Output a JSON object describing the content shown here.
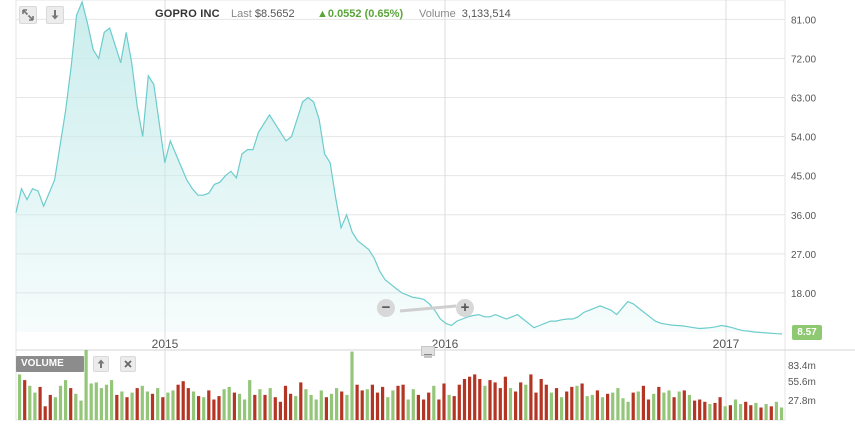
{
  "header": {
    "company": "GOPRO INC",
    "last_label": "Last",
    "last_value": "$8.5652",
    "change_text": "0.0552 (0.65%)",
    "volume_label": "Volume",
    "volume_value": "3,133,514"
  },
  "icons": {
    "expand": "expand-arrows-icon",
    "download": "download-arrow-icon",
    "zoom_out": "minus-icon",
    "zoom_in": "plus-icon",
    "move_up": "arrow-up-icon",
    "close": "close-x-icon",
    "resize": "grip-lines-icon"
  },
  "volume_panel": {
    "label": "VOLUME"
  },
  "last_badge": "8.57",
  "zoom": {
    "minus": "−",
    "plus": "+"
  },
  "colors": {
    "line": "#6ccccc",
    "fill": "#c8ecec",
    "vol_up": "#94c679",
    "vol_down": "#b53525",
    "change_up": "#5aa53a",
    "grid": "#e6e6e6"
  },
  "chart_data": [
    {
      "type": "area",
      "name": "price",
      "x_ticks": [
        "2015",
        "2016",
        "2017"
      ],
      "y_ticks": [
        "81.00",
        "72.00",
        "63.00",
        "54.00",
        "45.00",
        "36.00",
        "27.00",
        "18.00"
      ],
      "ylim": [
        9,
        85
      ],
      "grid": true,
      "values": [
        36.5,
        42,
        39.5,
        42,
        41.5,
        38,
        41,
        44,
        52,
        60,
        70,
        82,
        85,
        80,
        74,
        72,
        78,
        79,
        75,
        71,
        78,
        71,
        61,
        54,
        68,
        66,
        57,
        48,
        53,
        50,
        47,
        44,
        42,
        40.5,
        40.5,
        41,
        43,
        43.5,
        45,
        46,
        44.5,
        50,
        51,
        51,
        55,
        57,
        59,
        57,
        55,
        53,
        54,
        58,
        62,
        63,
        62,
        58,
        50,
        48,
        40,
        33,
        36,
        32,
        30,
        29,
        28,
        26,
        23,
        21,
        20,
        19,
        18,
        17.5,
        17,
        16.8,
        16.5,
        15.5,
        14,
        12,
        11,
        10.5,
        11.5,
        12,
        12.5,
        12.8,
        13,
        12.5,
        12.5,
        13,
        12.5,
        12,
        12.5,
        13,
        12,
        11,
        10,
        10.5,
        11,
        11.5,
        11.5,
        11.8,
        12,
        12,
        12.5,
        13.5,
        14,
        14.5,
        15,
        14.5,
        14,
        13,
        14.5,
        16,
        15.5,
        14.5,
        13.5,
        12.5,
        11.5,
        11,
        10.8,
        10.6,
        10.5,
        10.4,
        10.2,
        10.0,
        9.8,
        9.9,
        10,
        10.2,
        10.5,
        10.3,
        10,
        9.6,
        9.3,
        9.2,
        9.0,
        8.9,
        8.8,
        8.7,
        8.6,
        8.57
      ],
      "last": 8.57
    },
    {
      "type": "bar",
      "name": "volume",
      "y_ticks": [
        "83.4m",
        "55.6m",
        "27.8m"
      ],
      "ylim": [
        0,
        100
      ],
      "values": [
        40,
        35,
        30,
        24,
        29,
        12,
        22,
        20,
        30,
        35,
        28,
        23,
        17,
        100,
        32,
        33,
        28,
        31,
        35,
        22,
        25,
        20,
        24,
        28,
        30,
        25,
        23,
        28,
        20,
        24,
        26,
        31,
        34,
        28,
        25,
        21,
        20,
        26,
        18,
        21,
        27,
        29,
        24,
        23,
        18,
        35,
        22,
        27,
        22,
        28,
        20,
        16,
        30,
        23,
        21,
        33,
        27,
        22,
        18,
        26,
        20,
        23,
        28,
        25,
        22,
        60,
        31,
        26,
        27,
        31,
        24,
        29,
        20,
        26,
        30,
        31,
        18,
        27,
        22,
        18,
        24,
        30,
        18,
        32,
        22,
        21,
        31,
        36,
        38,
        40,
        36,
        30,
        35,
        33,
        28,
        38,
        28,
        25,
        33,
        31,
        40,
        24,
        36,
        31,
        24,
        28,
        20,
        25,
        29,
        30,
        32,
        21,
        22,
        26,
        20,
        23,
        24,
        28,
        19,
        16,
        24,
        25,
        30,
        18,
        23,
        29,
        24,
        26,
        20,
        25,
        26,
        22,
        17,
        18,
        16,
        14,
        15,
        20,
        12,
        13,
        18,
        14,
        16,
        13,
        15,
        11,
        14,
        12,
        16,
        11
      ],
      "directions": [
        "u",
        "d",
        "u",
        "u",
        "d",
        "d",
        "d",
        "u",
        "u",
        "u",
        "d",
        "u",
        "u",
        "u",
        "u",
        "u",
        "u",
        "u",
        "u",
        "d",
        "u",
        "d",
        "u",
        "d",
        "u",
        "u",
        "d",
        "u",
        "d",
        "u",
        "u",
        "d",
        "d",
        "d",
        "u",
        "d",
        "u",
        "d",
        "d",
        "d",
        "u",
        "u",
        "d",
        "u",
        "u",
        "u",
        "d",
        "u",
        "d",
        "u",
        "d",
        "d",
        "d",
        "d",
        "u",
        "d",
        "u",
        "u",
        "u",
        "u",
        "d",
        "u",
        "u",
        "d",
        "u",
        "u",
        "d",
        "d",
        "u",
        "d",
        "d",
        "d",
        "u",
        "u",
        "d",
        "d",
        "u",
        "u",
        "d",
        "d",
        "d",
        "u",
        "d",
        "d",
        "u",
        "d",
        "d",
        "d",
        "d",
        "d",
        "d",
        "u",
        "d",
        "d",
        "d",
        "d",
        "u",
        "d",
        "d",
        "u",
        "d",
        "d",
        "d",
        "d",
        "u",
        "d",
        "u",
        "d",
        "d",
        "u",
        "d",
        "u",
        "u",
        "d",
        "u",
        "d",
        "u",
        "u",
        "u",
        "u",
        "d",
        "u",
        "d",
        "d",
        "u",
        "d",
        "u",
        "u",
        "d",
        "u",
        "d",
        "u",
        "d",
        "d",
        "d",
        "u",
        "d",
        "d",
        "u",
        "d",
        "u",
        "u",
        "d",
        "d",
        "u",
        "d",
        "u",
        "d",
        "u",
        "u"
      ]
    }
  ]
}
